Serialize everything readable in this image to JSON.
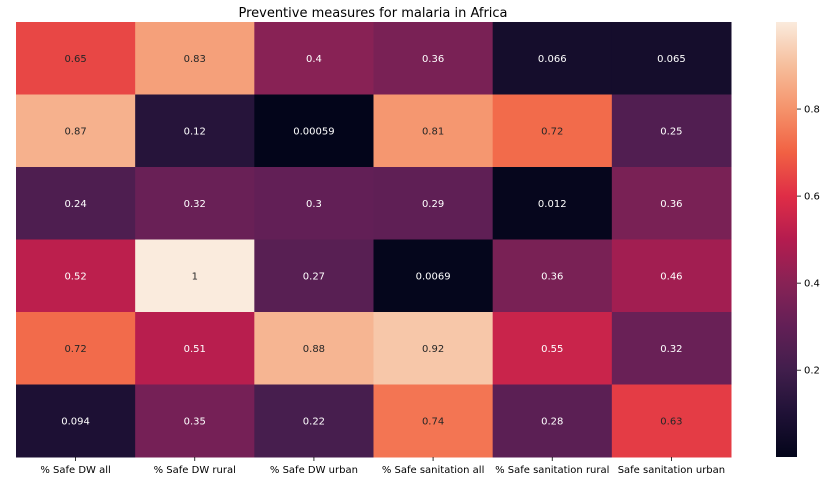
{
  "chart_data": {
    "type": "heatmap",
    "title": "Preventive measures for malaria in Africa",
    "xlabel": "",
    "ylabel": "",
    "x_categories": [
      "% Safe DW all",
      "% Safe DW rural",
      "% Safe DW urban",
      "% Safe sanitation all",
      "% Safe sanitation rural",
      "Safe sanitation urban"
    ],
    "y_categories": [],
    "values": [
      [
        0.65,
        0.83,
        0.4,
        0.36,
        0.066,
        0.065
      ],
      [
        0.87,
        0.12,
        0.00059,
        0.81,
        0.72,
        0.25
      ],
      [
        0.24,
        0.32,
        0.3,
        0.29,
        0.012,
        0.36
      ],
      [
        0.52,
        1,
        0.27,
        0.0069,
        0.36,
        0.46
      ],
      [
        0.72,
        0.51,
        0.88,
        0.92,
        0.55,
        0.32
      ],
      [
        0.094,
        0.35,
        0.22,
        0.74,
        0.28,
        0.63
      ]
    ],
    "value_labels": [
      [
        "0.65",
        "0.83",
        "0.4",
        "0.36",
        "0.066",
        "0.065"
      ],
      [
        "0.87",
        "0.12",
        "0.00059",
        "0.81",
        "0.72",
        "0.25"
      ],
      [
        "0.24",
        "0.32",
        "0.3",
        "0.29",
        "0.012",
        "0.36"
      ],
      [
        "0.52",
        "1",
        "0.27",
        "0.0069",
        "0.36",
        "0.46"
      ],
      [
        "0.72",
        "0.51",
        "0.88",
        "0.92",
        "0.55",
        "0.32"
      ],
      [
        "0.094",
        "0.35",
        "0.22",
        "0.74",
        "0.28",
        "0.63"
      ]
    ],
    "colormap": "rocket",
    "colorbar": {
      "range": [
        0.00059,
        1
      ],
      "ticks": [
        0.2,
        0.4,
        0.6,
        0.8
      ],
      "tick_labels": [
        "0.2",
        "0.4",
        "0.6",
        "0.8"
      ],
      "placement": "right"
    },
    "grid": false
  }
}
